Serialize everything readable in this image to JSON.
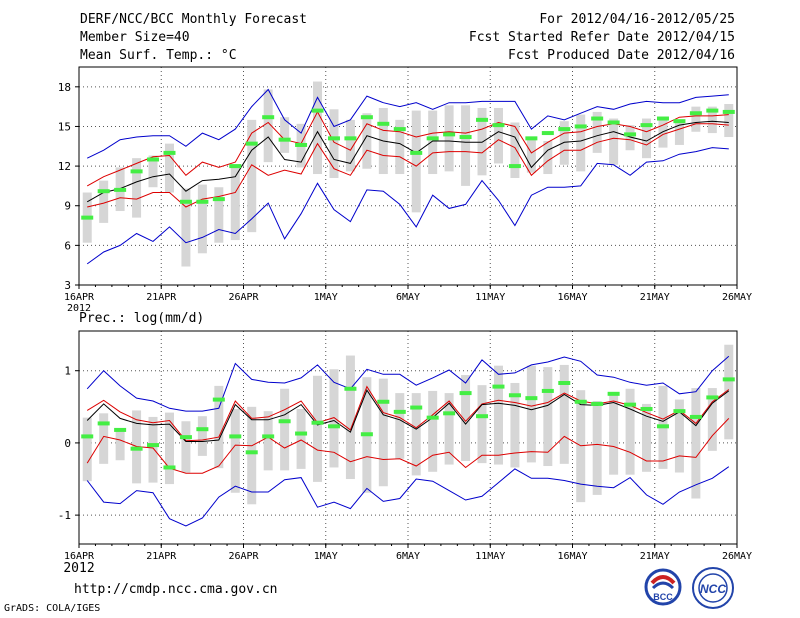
{
  "header": {
    "title": "DERF/NCC/BCC Monthly Forecast",
    "member": "Member Size=40",
    "variable": "Mean Surf. Temp.: °C",
    "for_range": "For 2012/04/16-2012/05/25",
    "started": "Fcst Started Refer Date 2012/04/15",
    "produced": "Fcst Produced Date 2012/04/16"
  },
  "footer": {
    "url": "http://cmdp.ncc.cma.gov.cn",
    "credit": "GrADS: COLA/IGES",
    "logo_bcc": "BCC",
    "logo_ncc": "NCC"
  },
  "colors": {
    "envelope": "#0000cc",
    "spread": "#dd0000",
    "mean": "#000000",
    "box": "#d6d6d6",
    "marker": "#44ee44"
  },
  "chart_data": [
    {
      "type": "line",
      "title": "Mean Surf. Temp.: °C",
      "x_ticks": [
        "16APR\n2012",
        "21APR",
        "26APR",
        "1MAY",
        "6MAY",
        "11MAY",
        "16MAY",
        "21MAY",
        "26MAY"
      ],
      "ylim": [
        3,
        19.5
      ],
      "y_ticks": [
        3,
        6,
        9,
        12,
        15,
        18
      ],
      "grid": true,
      "series": [
        {
          "name": "max",
          "values": [
            12.6,
            13.2,
            14,
            14.2,
            14.3,
            14.3,
            13.5,
            14.5,
            14,
            14.8,
            16.5,
            17.8,
            15.5,
            14.5,
            17.2,
            15,
            15.5,
            17.3,
            16.8,
            16.5,
            16.8,
            16.3,
            16.8,
            16.8,
            16.9,
            16.9,
            16.9,
            14.8,
            15.8,
            15.5,
            16,
            16.5,
            16.3,
            16.7,
            16.9,
            16.8,
            16.8,
            17.2,
            17.3,
            17.4
          ]
        },
        {
          "name": "upper",
          "values": [
            10.5,
            11.2,
            11.7,
            12.2,
            12.7,
            12.8,
            11.3,
            12.3,
            11.9,
            12.3,
            14.5,
            15.3,
            14,
            13.7,
            16.1,
            13.8,
            13.2,
            15.2,
            14.7,
            14.6,
            14.2,
            14.5,
            14.6,
            14.5,
            14.8,
            15.3,
            15,
            13,
            13.8,
            14.5,
            14.6,
            15,
            15.2,
            15,
            14.6,
            15.1,
            15.7,
            15.8,
            15.8,
            15.9
          ]
        },
        {
          "name": "mean",
          "values": [
            9.3,
            10,
            10.3,
            10.8,
            11.2,
            11.4,
            10.1,
            10.9,
            11,
            11.2,
            13.2,
            14.2,
            12.5,
            12.3,
            14.6,
            12.5,
            12.2,
            14.3,
            13.9,
            13.7,
            13,
            13.9,
            13.9,
            13.8,
            13.8,
            14.6,
            14.2,
            11.9,
            13.2,
            13.8,
            13.9,
            14.3,
            14.6,
            14.2,
            13.9,
            14.6,
            15.1,
            15.3,
            15.4,
            15.3
          ]
        },
        {
          "name": "lower",
          "values": [
            8.9,
            9.2,
            9.6,
            9.5,
            10,
            10,
            8.9,
            9.5,
            9.7,
            10,
            12.1,
            11.3,
            11.7,
            11.4,
            13.7,
            11.8,
            11.3,
            13.2,
            12.8,
            12.7,
            12,
            13,
            13.1,
            13.1,
            13,
            14,
            13.4,
            11.3,
            12.4,
            13.2,
            13.2,
            13.8,
            14.1,
            14,
            13.6,
            14.4,
            14.8,
            15.2,
            15.2,
            15.1
          ]
        },
        {
          "name": "min",
          "values": [
            4.6,
            5.5,
            6,
            6.9,
            6.3,
            7.4,
            6.2,
            6.6,
            7.2,
            6.9,
            8,
            9.2,
            6.5,
            8.4,
            10.7,
            8.7,
            7.8,
            10.2,
            10.1,
            9.1,
            7.4,
            9.8,
            8.8,
            9.1,
            10.9,
            9.4,
            7.5,
            9.8,
            10.4,
            10.4,
            10.5,
            12.2,
            12.1,
            11.3,
            12.3,
            12.4,
            12.9,
            13.1,
            13.4,
            13.3
          ]
        },
        {
          "name": "observed",
          "values": [
            8.1,
            10.1,
            10.2,
            11.6,
            12.5,
            13,
            9.3,
            9.3,
            9.5,
            12,
            13.7,
            15.7,
            14,
            13.6,
            16.2,
            14.1,
            14.1,
            15.7,
            15.2,
            14.8,
            13,
            14.1,
            14.4,
            14.2,
            15.5,
            15.1,
            12,
            14.1,
            14.5,
            14.8,
            15,
            15.6,
            15.3,
            14.4,
            15.1,
            15.6,
            15.4,
            16,
            16.2,
            16.1
          ]
        }
      ],
      "boxes": {
        "low": [
          6.2,
          7.7,
          8.6,
          8.1,
          10.4,
          10,
          4.4,
          5.4,
          6.2,
          6.4,
          7,
          12.3,
          13,
          11.9,
          11.4,
          11.1,
          11.6,
          11.8,
          11.4,
          11.4,
          8.5,
          11.4,
          11.6,
          10.5,
          11.3,
          12.2,
          11.1,
          11.5,
          11.4,
          12.1,
          11.6,
          13,
          12.1,
          13.2,
          12.6,
          13.4,
          13.6,
          14.6,
          14.5,
          14.2
        ],
        "high": [
          10,
          10.9,
          11.9,
          12.6,
          12.8,
          13.7,
          10.3,
          10.6,
          10.4,
          12,
          15.5,
          17.8,
          15.7,
          15.2,
          18.4,
          16.3,
          15.5,
          16,
          16.4,
          15.5,
          16.2,
          16.2,
          16.6,
          16.6,
          16.4,
          16.4,
          15.3,
          14,
          13.9,
          15.4,
          15.9,
          16.1,
          15.6,
          15.1,
          15.6,
          15.7,
          15.4,
          16.5,
          16.5,
          16.7
        ]
      }
    },
    {
      "type": "line",
      "title": "Prec.: log(mm/d)",
      "x_ticks": [
        "16APR\n2012",
        "21APR",
        "26APR",
        "1MAY",
        "6MAY",
        "11MAY",
        "16MAY",
        "21MAY",
        "26MAY"
      ],
      "ylim": [
        -1.4,
        1.55
      ],
      "y_ticks": [
        -1,
        0,
        1
      ],
      "grid": true,
      "series": [
        {
          "name": "max",
          "values": [
            0.75,
            1,
            0.79,
            0.62,
            0.58,
            0.48,
            0.44,
            0.44,
            0.48,
            1.1,
            0.88,
            0.84,
            0.83,
            0.9,
            1.08,
            0.84,
            0.75,
            1.02,
            0.95,
            0.95,
            0.8,
            0.9,
            1.01,
            0.83,
            1.15,
            0.95,
            0.97,
            1.08,
            1.12,
            1.19,
            1.13,
            0.94,
            0.91,
            0.84,
            0.8,
            0.83,
            0.68,
            0.71,
            1,
            1.2
          ]
        },
        {
          "name": "upper",
          "values": [
            0.45,
            0.59,
            0.43,
            0.32,
            0.28,
            0.31,
            0.03,
            0.04,
            0.08,
            0.58,
            0.34,
            0.36,
            0.46,
            0.58,
            0.28,
            0.35,
            0.18,
            0.78,
            0.42,
            0.35,
            0.21,
            0.39,
            0.58,
            0.3,
            0.54,
            0.59,
            0.56,
            0.51,
            0.56,
            0.69,
            0.58,
            0.54,
            0.58,
            0.52,
            0.42,
            0.33,
            0.45,
            0.27,
            0.57,
            0.74
          ]
        },
        {
          "name": "mean",
          "values": [
            0.31,
            0.54,
            0.34,
            0.27,
            0.25,
            0.26,
            0.02,
            0.02,
            0.04,
            0.53,
            0.32,
            0.32,
            0.39,
            0.53,
            0.25,
            0.31,
            0.15,
            0.73,
            0.39,
            0.32,
            0.19,
            0.35,
            0.55,
            0.26,
            0.53,
            0.55,
            0.52,
            0.46,
            0.52,
            0.67,
            0.53,
            0.52,
            0.56,
            0.47,
            0.37,
            0.3,
            0.43,
            0.24,
            0.55,
            0.72
          ]
        },
        {
          "name": "lower",
          "values": [
            -0.28,
            0.09,
            0.04,
            -0.05,
            -0.07,
            -0.35,
            -0.42,
            -0.42,
            -0.32,
            -0.03,
            -0.04,
            0.08,
            -0.07,
            0.04,
            -0.1,
            -0.13,
            -0.26,
            -0.19,
            -0.23,
            -0.22,
            -0.32,
            -0.17,
            -0.13,
            -0.34,
            -0.17,
            -0.17,
            -0.14,
            -0.12,
            -0.13,
            0.09,
            -0.04,
            -0.02,
            -0.05,
            -0.13,
            -0.25,
            -0.25,
            -0.18,
            -0.2,
            0.1,
            0.34
          ]
        },
        {
          "name": "min",
          "values": [
            -0.52,
            -0.82,
            -0.84,
            -0.66,
            -0.69,
            -1.05,
            -1.15,
            -1.04,
            -0.75,
            -0.6,
            -0.68,
            -0.68,
            -0.51,
            -0.48,
            -0.89,
            -0.82,
            -0.91,
            -0.63,
            -0.81,
            -0.77,
            -0.5,
            -0.53,
            -0.66,
            -0.79,
            -0.74,
            -0.55,
            -0.36,
            -0.49,
            -0.49,
            -0.52,
            -0.57,
            -0.6,
            -0.62,
            -0.48,
            -0.72,
            -0.85,
            -0.68,
            -0.58,
            -0.49,
            -0.33
          ]
        },
        {
          "name": "observed",
          "values": [
            0.09,
            0.27,
            0.18,
            -0.08,
            -0.03,
            -0.34,
            0.08,
            0.19,
            0.6,
            0.09,
            -0.13,
            0.09,
            0.3,
            0.13,
            0.28,
            0.23,
            0.75,
            0.12,
            0.57,
            0.43,
            0.49,
            0.35,
            0.41,
            0.69,
            0.37,
            0.78,
            0.66,
            0.62,
            0.72,
            0.83,
            0.57,
            0.54,
            0.68,
            0.53,
            0.47,
            0.23,
            0.44,
            0.36,
            0.63,
            0.88
          ]
        }
      ],
      "boxes": {
        "low": [
          -0.53,
          -0.29,
          -0.24,
          -0.56,
          -0.55,
          -0.57,
          -0.41,
          -0.18,
          -0.35,
          -0.69,
          -0.85,
          -0.38,
          -0.38,
          -0.36,
          -0.54,
          -0.34,
          -0.5,
          -0.69,
          -0.6,
          -0.22,
          -0.45,
          -0.4,
          -0.3,
          -0.25,
          -0.28,
          -0.3,
          -0.34,
          -0.27,
          -0.32,
          -0.29,
          -0.82,
          -0.72,
          -0.44,
          -0.44,
          -0.4,
          -0.36,
          -0.41,
          -0.77,
          -0.11,
          0.05
        ],
        "high": [
          0.35,
          0.41,
          0.18,
          0.45,
          0.36,
          0.42,
          0.3,
          0.37,
          0.79,
          0.47,
          0.5,
          0.44,
          0.75,
          0.47,
          0.93,
          1.02,
          1.21,
          0.91,
          0.89,
          0.69,
          0.69,
          0.72,
          0.69,
          0.94,
          0.8,
          1.07,
          0.83,
          1.07,
          1.05,
          1.08,
          0.73,
          0.58,
          0.67,
          0.75,
          0.54,
          0.79,
          0.6,
          0.76,
          0.76,
          1.36
        ]
      }
    }
  ]
}
